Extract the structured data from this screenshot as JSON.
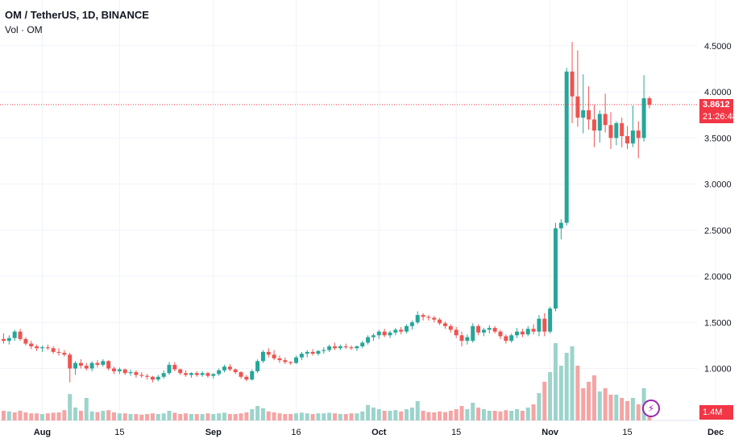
{
  "header": {
    "title": "OM / TetherUS, 1D, BINANCE",
    "volume_label": "Vol · OM"
  },
  "last_price": {
    "value": "3.8612",
    "countdown": "21:26:48"
  },
  "volume_last": "1.4M",
  "colors": {
    "up": "#26a69a",
    "down": "#ef5350",
    "up_volume": "#9bd4cb",
    "down_volume": "#f5a4a4",
    "grid": "#f0f3fa",
    "price_line": "#f23645",
    "accent": "#9c27b0"
  },
  "icons": [
    "lightning-icon"
  ],
  "chart_data": {
    "type": "candlestick",
    "symbol": "OM / TetherUS",
    "interval": "1D",
    "exchange": "BINANCE",
    "y_ticks": [
      "4.5000",
      "4.0000",
      "3.5000",
      "3.0000",
      "2.5000",
      "2.0000",
      "1.5000",
      "1.0000"
    ],
    "ylim": [
      0.5,
      4.9
    ],
    "x_ticks": [
      "Aug",
      "15",
      "Sep",
      "16",
      "Oct",
      "15",
      "Nov",
      "15",
      "Dec"
    ],
    "grid": true,
    "start_date": "2024-07-25",
    "candles": [
      [
        1.32,
        1.38,
        1.27,
        1.3
      ],
      [
        1.3,
        1.36,
        1.26,
        1.33
      ],
      [
        1.33,
        1.42,
        1.3,
        1.4
      ],
      [
        1.4,
        1.43,
        1.3,
        1.32
      ],
      [
        1.32,
        1.34,
        1.25,
        1.27
      ],
      [
        1.27,
        1.3,
        1.21,
        1.24
      ],
      [
        1.24,
        1.26,
        1.19,
        1.22
      ],
      [
        1.22,
        1.25,
        1.18,
        1.23
      ],
      [
        1.23,
        1.26,
        1.2,
        1.22
      ],
      [
        1.22,
        1.24,
        1.16,
        1.18
      ],
      [
        1.18,
        1.22,
        1.14,
        1.17
      ],
      [
        1.17,
        1.2,
        1.13,
        1.15
      ],
      [
        1.15,
        1.17,
        0.85,
        1.0
      ],
      [
        1.0,
        1.08,
        0.93,
        1.06
      ],
      [
        1.06,
        1.1,
        1.0,
        1.03
      ],
      [
        1.03,
        1.06,
        0.98,
        1.0
      ],
      [
        1.0,
        1.08,
        0.97,
        1.06
      ],
      [
        1.06,
        1.09,
        1.01,
        1.04
      ],
      [
        1.04,
        1.1,
        1.02,
        1.08
      ],
      [
        1.08,
        1.09,
        0.98,
        1.0
      ],
      [
        1.0,
        1.02,
        0.94,
        0.97
      ],
      [
        0.97,
        1.01,
        0.94,
        0.99
      ],
      [
        0.99,
        1.0,
        0.93,
        0.95
      ],
      [
        0.95,
        0.99,
        0.92,
        0.96
      ],
      [
        0.96,
        0.98,
        0.9,
        0.93
      ],
      [
        0.93,
        0.96,
        0.9,
        0.92
      ],
      [
        0.92,
        0.94,
        0.88,
        0.91
      ],
      [
        0.91,
        0.92,
        0.85,
        0.88
      ],
      [
        0.88,
        0.93,
        0.86,
        0.91
      ],
      [
        0.91,
        0.98,
        0.89,
        0.95
      ],
      [
        0.95,
        1.07,
        0.93,
        1.04
      ],
      [
        1.04,
        1.07,
        0.97,
        0.99
      ],
      [
        0.99,
        1.0,
        0.93,
        0.95
      ],
      [
        0.95,
        0.98,
        0.91,
        0.93
      ],
      [
        0.93,
        0.96,
        0.9,
        0.95
      ],
      [
        0.95,
        0.97,
        0.91,
        0.93
      ],
      [
        0.93,
        0.97,
        0.91,
        0.95
      ],
      [
        0.95,
        0.96,
        0.9,
        0.92
      ],
      [
        0.92,
        0.95,
        0.89,
        0.94
      ],
      [
        0.94,
        1.0,
        0.92,
        0.98
      ],
      [
        0.98,
        1.04,
        0.96,
        1.02
      ],
      [
        1.02,
        1.05,
        0.97,
        0.99
      ],
      [
        0.99,
        1.0,
        0.94,
        0.96
      ],
      [
        0.96,
        0.97,
        0.89,
        0.91
      ],
      [
        0.91,
        0.93,
        0.86,
        0.88
      ],
      [
        0.88,
        0.99,
        0.87,
        0.97
      ],
      [
        0.97,
        1.1,
        0.95,
        1.08
      ],
      [
        1.08,
        1.2,
        1.06,
        1.18
      ],
      [
        1.18,
        1.22,
        1.12,
        1.15
      ],
      [
        1.15,
        1.2,
        1.09,
        1.11
      ],
      [
        1.11,
        1.14,
        1.06,
        1.09
      ],
      [
        1.09,
        1.12,
        1.05,
        1.07
      ],
      [
        1.07,
        1.08,
        1.04,
        1.06
      ],
      [
        1.06,
        1.14,
        1.05,
        1.12
      ],
      [
        1.12,
        1.18,
        1.09,
        1.16
      ],
      [
        1.16,
        1.2,
        1.12,
        1.18
      ],
      [
        1.18,
        1.21,
        1.14,
        1.16
      ],
      [
        1.16,
        1.2,
        1.14,
        1.19
      ],
      [
        1.19,
        1.23,
        1.16,
        1.2
      ],
      [
        1.2,
        1.26,
        1.18,
        1.24
      ],
      [
        1.24,
        1.28,
        1.2,
        1.22
      ],
      [
        1.22,
        1.26,
        1.2,
        1.24
      ],
      [
        1.24,
        1.27,
        1.21,
        1.23
      ],
      [
        1.23,
        1.25,
        1.2,
        1.22
      ],
      [
        1.22,
        1.25,
        1.19,
        1.24
      ],
      [
        1.24,
        1.3,
        1.22,
        1.28
      ],
      [
        1.28,
        1.36,
        1.26,
        1.34
      ],
      [
        1.34,
        1.38,
        1.3,
        1.36
      ],
      [
        1.36,
        1.42,
        1.32,
        1.4
      ],
      [
        1.4,
        1.43,
        1.34,
        1.36
      ],
      [
        1.36,
        1.41,
        1.33,
        1.39
      ],
      [
        1.39,
        1.44,
        1.36,
        1.42
      ],
      [
        1.42,
        1.45,
        1.37,
        1.4
      ],
      [
        1.4,
        1.48,
        1.38,
        1.46
      ],
      [
        1.46,
        1.52,
        1.42,
        1.5
      ],
      [
        1.5,
        1.62,
        1.48,
        1.58
      ],
      [
        1.58,
        1.6,
        1.52,
        1.56
      ],
      [
        1.56,
        1.58,
        1.52,
        1.55
      ],
      [
        1.55,
        1.57,
        1.5,
        1.53
      ],
      [
        1.53,
        1.55,
        1.47,
        1.49
      ],
      [
        1.49,
        1.51,
        1.43,
        1.46
      ],
      [
        1.46,
        1.48,
        1.39,
        1.42
      ],
      [
        1.42,
        1.45,
        1.33,
        1.36
      ],
      [
        1.36,
        1.4,
        1.24,
        1.3
      ],
      [
        1.3,
        1.37,
        1.26,
        1.34
      ],
      [
        1.3,
        1.49,
        1.28,
        1.46
      ],
      [
        1.46,
        1.48,
        1.36,
        1.39
      ],
      [
        1.39,
        1.44,
        1.35,
        1.42
      ],
      [
        1.42,
        1.47,
        1.38,
        1.44
      ],
      [
        1.44,
        1.46,
        1.38,
        1.4
      ],
      [
        1.4,
        1.42,
        1.32,
        1.35
      ],
      [
        1.35,
        1.37,
        1.27,
        1.3
      ],
      [
        1.3,
        1.38,
        1.28,
        1.36
      ],
      [
        1.36,
        1.44,
        1.33,
        1.4
      ],
      [
        1.4,
        1.43,
        1.34,
        1.37
      ],
      [
        1.37,
        1.46,
        1.35,
        1.43
      ],
      [
        1.43,
        1.48,
        1.37,
        1.4
      ],
      [
        1.4,
        1.58,
        1.35,
        1.54
      ],
      [
        1.54,
        1.6,
        1.35,
        1.4
      ],
      [
        1.4,
        1.67,
        1.38,
        1.65
      ],
      [
        1.65,
        2.58,
        1.62,
        2.52
      ],
      [
        2.52,
        2.62,
        2.4,
        2.58
      ],
      [
        2.58,
        4.26,
        2.55,
        4.22
      ],
      [
        4.22,
        4.54,
        3.66,
        3.95
      ],
      [
        3.95,
        4.45,
        3.62,
        3.72
      ],
      [
        3.72,
        4.19,
        3.55,
        3.8
      ],
      [
        3.8,
        4.06,
        3.59,
        3.7
      ],
      [
        3.7,
        3.86,
        3.4,
        3.58
      ],
      [
        3.58,
        3.8,
        3.45,
        3.76
      ],
      [
        3.76,
        3.98,
        3.56,
        3.64
      ],
      [
        3.64,
        3.78,
        3.38,
        3.5
      ],
      [
        3.5,
        3.68,
        3.42,
        3.66
      ],
      [
        3.66,
        3.72,
        3.4,
        3.52
      ],
      [
        3.52,
        3.63,
        3.38,
        3.44
      ],
      [
        3.44,
        3.85,
        3.4,
        3.58
      ],
      [
        3.58,
        3.68,
        3.28,
        3.5
      ],
      [
        3.5,
        4.18,
        3.46,
        3.93
      ],
      [
        3.93,
        3.95,
        3.82,
        3.86
      ]
    ],
    "volume": [
      [
        0.3,
        "down"
      ],
      [
        0.28,
        "up"
      ],
      [
        0.25,
        "down"
      ],
      [
        0.3,
        "down"
      ],
      [
        0.25,
        "down"
      ],
      [
        0.22,
        "down"
      ],
      [
        0.22,
        "down"
      ],
      [
        0.2,
        "up"
      ],
      [
        0.22,
        "down"
      ],
      [
        0.24,
        "down"
      ],
      [
        0.25,
        "down"
      ],
      [
        0.32,
        "down"
      ],
      [
        0.82,
        "up"
      ],
      [
        0.4,
        "up"
      ],
      [
        0.3,
        "down"
      ],
      [
        0.7,
        "up"
      ],
      [
        0.28,
        "up"
      ],
      [
        0.26,
        "down"
      ],
      [
        0.3,
        "up"
      ],
      [
        0.32,
        "down"
      ],
      [
        0.25,
        "down"
      ],
      [
        0.22,
        "up"
      ],
      [
        0.22,
        "down"
      ],
      [
        0.2,
        "up"
      ],
      [
        0.2,
        "down"
      ],
      [
        0.18,
        "down"
      ],
      [
        0.2,
        "down"
      ],
      [
        0.22,
        "down"
      ],
      [
        0.2,
        "up"
      ],
      [
        0.22,
        "up"
      ],
      [
        0.3,
        "up"
      ],
      [
        0.24,
        "down"
      ],
      [
        0.2,
        "down"
      ],
      [
        0.22,
        "down"
      ],
      [
        0.2,
        "up"
      ],
      [
        0.2,
        "down"
      ],
      [
        0.2,
        "up"
      ],
      [
        0.22,
        "down"
      ],
      [
        0.2,
        "up"
      ],
      [
        0.22,
        "up"
      ],
      [
        0.24,
        "up"
      ],
      [
        0.2,
        "down"
      ],
      [
        0.2,
        "down"
      ],
      [
        0.22,
        "down"
      ],
      [
        0.25,
        "down"
      ],
      [
        0.35,
        "up"
      ],
      [
        0.45,
        "up"
      ],
      [
        0.38,
        "up"
      ],
      [
        0.28,
        "down"
      ],
      [
        0.25,
        "down"
      ],
      [
        0.22,
        "down"
      ],
      [
        0.2,
        "down"
      ],
      [
        0.2,
        "down"
      ],
      [
        0.22,
        "up"
      ],
      [
        0.24,
        "up"
      ],
      [
        0.22,
        "up"
      ],
      [
        0.2,
        "down"
      ],
      [
        0.22,
        "up"
      ],
      [
        0.22,
        "up"
      ],
      [
        0.24,
        "up"
      ],
      [
        0.22,
        "down"
      ],
      [
        0.2,
        "up"
      ],
      [
        0.2,
        "down"
      ],
      [
        0.22,
        "down"
      ],
      [
        0.22,
        "up"
      ],
      [
        0.28,
        "up"
      ],
      [
        0.48,
        "up"
      ],
      [
        0.4,
        "up"
      ],
      [
        0.35,
        "up"
      ],
      [
        0.3,
        "down"
      ],
      [
        0.3,
        "up"
      ],
      [
        0.32,
        "up"
      ],
      [
        0.28,
        "down"
      ],
      [
        0.35,
        "up"
      ],
      [
        0.4,
        "up"
      ],
      [
        0.6,
        "up"
      ],
      [
        0.3,
        "down"
      ],
      [
        0.26,
        "down"
      ],
      [
        0.25,
        "down"
      ],
      [
        0.28,
        "down"
      ],
      [
        0.26,
        "down"
      ],
      [
        0.3,
        "down"
      ],
      [
        0.35,
        "down"
      ],
      [
        0.45,
        "down"
      ],
      [
        0.35,
        "up"
      ],
      [
        0.55,
        "up"
      ],
      [
        0.4,
        "down"
      ],
      [
        0.35,
        "up"
      ],
      [
        0.3,
        "up"
      ],
      [
        0.3,
        "down"
      ],
      [
        0.28,
        "down"
      ],
      [
        0.32,
        "down"
      ],
      [
        0.3,
        "up"
      ],
      [
        0.35,
        "up"
      ],
      [
        0.3,
        "down"
      ],
      [
        0.4,
        "up"
      ],
      [
        0.5,
        "down"
      ],
      [
        0.85,
        "up"
      ],
      [
        1.2,
        "down"
      ],
      [
        1.5,
        "up"
      ],
      [
        2.4,
        "up"
      ],
      [
        1.7,
        "up"
      ],
      [
        2.1,
        "up"
      ],
      [
        2.3,
        "up"
      ],
      [
        1.7,
        "down"
      ],
      [
        1.0,
        "down"
      ],
      [
        1.2,
        "down"
      ],
      [
        1.4,
        "down"
      ],
      [
        0.9,
        "up"
      ],
      [
        1.0,
        "down"
      ],
      [
        0.8,
        "down"
      ],
      [
        0.8,
        "up"
      ],
      [
        0.7,
        "down"
      ],
      [
        0.6,
        "down"
      ],
      [
        0.7,
        "up"
      ],
      [
        0.5,
        "down"
      ],
      [
        1.0,
        "up"
      ],
      [
        0.4,
        "down"
      ]
    ]
  }
}
